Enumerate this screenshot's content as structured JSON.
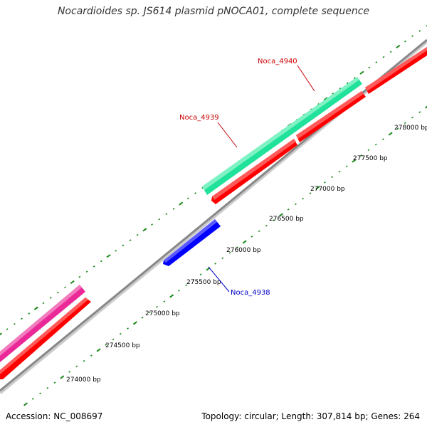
{
  "title": "Nocardioides sp. JS614 plasmid pNOCA01, complete sequence",
  "footer": {
    "accession": "Accession: NC_008697",
    "summary": "Topology: circular; Length: 307,814 bp; Genes: 264"
  },
  "colors": {
    "backbone": "#888888",
    "cds": "#ff0000",
    "gene_green": "#21e29a",
    "gene_pink": "#ea2898",
    "gene_blue": "#0000ff",
    "tick": "#1a8a1a",
    "label_red": "#cc0000",
    "label_blue": "#0000cc"
  },
  "scale_labels": [
    "274000 bp",
    "274500 bp",
    "275000 bp",
    "275500 bp",
    "276000 bp",
    "276500 bp",
    "277000 bp",
    "277500 bp",
    "278000 bp"
  ],
  "gene_labels": [
    {
      "name": "Noca_4938",
      "color": "blue"
    },
    {
      "name": "Noca_4939",
      "color": "red"
    },
    {
      "name": "Noca_4940",
      "color": "red"
    }
  ]
}
